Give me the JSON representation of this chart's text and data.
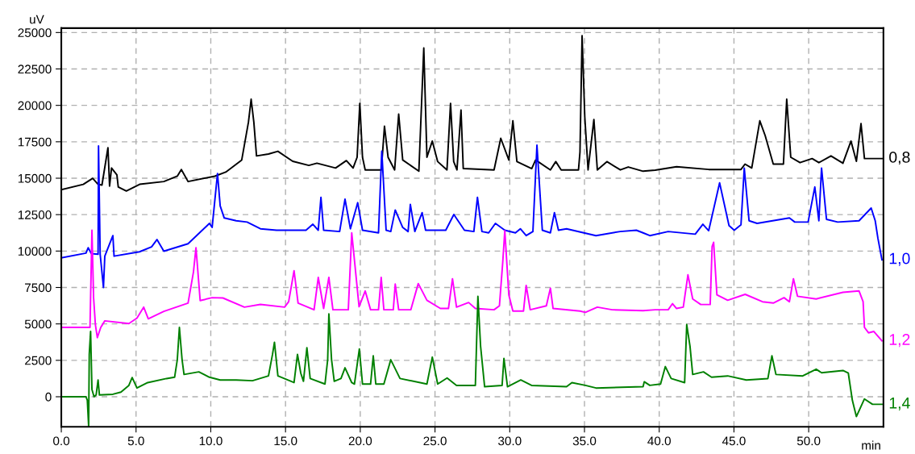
{
  "chart_data": {
    "type": "line",
    "xlabel": "min",
    "ylabel": "uV",
    "xlim": [
      0,
      55
    ],
    "ylim": [
      -2060,
      25300
    ],
    "xticks": [
      {
        "value": 0,
        "label": "0.0"
      },
      {
        "value": 5,
        "label": "5.0"
      },
      {
        "value": 10,
        "label": "10.0"
      },
      {
        "value": 15,
        "label": "15.0"
      },
      {
        "value": 20,
        "label": "20.0"
      },
      {
        "value": 25,
        "label": "25.0"
      },
      {
        "value": 30,
        "label": "30.0"
      },
      {
        "value": 35,
        "label": "35.0"
      },
      {
        "value": 40,
        "label": "40.0"
      },
      {
        "value": 45,
        "label": "45.0"
      },
      {
        "value": 50,
        "label": "50.0"
      }
    ],
    "yticks": [
      0,
      2500,
      5000,
      7500,
      10000,
      12500,
      15000,
      17500,
      20000,
      22500,
      25000
    ],
    "grid": true,
    "legend": false,
    "line_style": "solid",
    "marker": "none",
    "series": [
      {
        "name": "0,8",
        "color": "#000000",
        "x": [
          0,
          1.47,
          2.1,
          2.46,
          2.72,
          3.12,
          3.23,
          3.36,
          3.72,
          3.81,
          4.35,
          5.24,
          6.86,
          7.76,
          8.03,
          8.48,
          10.27,
          11.0,
          12.07,
          12.52,
          12.7,
          12.88,
          13.06,
          13.86,
          14.49,
          15.48,
          16.56,
          17.1,
          18.35,
          19.07,
          19.52,
          19.79,
          19.97,
          20.15,
          20.33,
          21.41,
          21.62,
          21.86,
          22.3,
          22.57,
          22.84,
          23.92,
          24.25,
          24.46,
          24.82,
          25.18,
          25.8,
          26.04,
          26.25,
          26.47,
          26.74,
          26.89,
          28.95,
          29.4,
          29.94,
          30.21,
          30.48,
          31.47,
          31.73,
          32.72,
          33.08,
          33.44,
          34.6,
          34.7,
          34.84,
          35.02,
          35.24,
          35.63,
          35.86,
          36.5,
          37.4,
          37.93,
          38.92,
          39.73,
          41.16,
          43.31,
          45.47,
          45.74,
          46.19,
          46.73,
          47.09,
          47.63,
          48.31,
          48.53,
          48.8,
          49.42,
          50.23,
          50.68,
          51.49,
          52.29,
          52.83,
          53.19,
          53.5,
          53.73,
          54.9
        ],
        "values": [
          14210,
          14580,
          14990,
          14580,
          14530,
          17090,
          14460,
          15700,
          15230,
          14400,
          14120,
          14580,
          14770,
          15140,
          15600,
          14770,
          15140,
          15420,
          16250,
          18850,
          20420,
          18850,
          16530,
          16660,
          16850,
          16160,
          15880,
          16030,
          15700,
          16210,
          15700,
          16440,
          20140,
          16440,
          15570,
          15570,
          18570,
          16440,
          15570,
          19400,
          16250,
          15480,
          23940,
          16440,
          17550,
          16140,
          15570,
          20140,
          16140,
          15570,
          19680,
          15660,
          15570,
          17740,
          16250,
          18940,
          16140,
          15660,
          16250,
          15570,
          16140,
          15570,
          15570,
          16810,
          24780,
          19220,
          15570,
          19030,
          15570,
          16140,
          15570,
          15770,
          15480,
          15550,
          15790,
          15600,
          15600,
          15970,
          15700,
          18940,
          17920,
          15970,
          15970,
          20420,
          16440,
          16070,
          16350,
          16070,
          16530,
          16030,
          17550,
          16160,
          18750,
          16350,
          16350
        ]
      },
      {
        "name": "1,0",
        "color": "#0000ff",
        "x": [
          0,
          1.65,
          1.8,
          2.01,
          2.46,
          2.49,
          2.6,
          2.82,
          2.91,
          3.45,
          3.53,
          5.23,
          6.04,
          6.4,
          6.86,
          8.48,
          9.91,
          10.09,
          10.45,
          10.63,
          10.9,
          11.7,
          12.43,
          13.32,
          14.4,
          15.3,
          16.37,
          16.83,
          17.19,
          17.37,
          17.55,
          18.62,
          18.98,
          19.34,
          19.83,
          20.15,
          21.22,
          21.44,
          21.73,
          22.04,
          22.34,
          22.84,
          23.2,
          23.35,
          23.65,
          24.14,
          24.37,
          25.72,
          26.26,
          26.97,
          27.6,
          27.84,
          28.14,
          28.59,
          29.04,
          29.67,
          30.38,
          30.71,
          31.1,
          31.55,
          31.82,
          32.18,
          32.72,
          32.99,
          33.26,
          33.8,
          35.77,
          37.39,
          38.47,
          38.92,
          39.37,
          40.6,
          42.41,
          42.92,
          43.31,
          44.04,
          44.67,
          45.02,
          45.47,
          45.69,
          46.01,
          46.55,
          48.71,
          49.07,
          49.96,
          50.41,
          50.68,
          50.86,
          51.19,
          51.94,
          53.37,
          54.18,
          54.45,
          54.63,
          54.9
        ],
        "values": [
          9540,
          9860,
          10230,
          9820,
          9780,
          17210,
          9780,
          7500,
          9650,
          11060,
          9650,
          9950,
          10290,
          10790,
          9990,
          10500,
          11900,
          11620,
          15320,
          13100,
          12270,
          12080,
          11990,
          11530,
          11430,
          11430,
          11430,
          11840,
          11430,
          13690,
          11430,
          11340,
          13560,
          11530,
          13320,
          11430,
          11250,
          16850,
          11430,
          11340,
          12820,
          11620,
          11340,
          13200,
          11340,
          12640,
          11430,
          11430,
          12510,
          11430,
          11340,
          13690,
          11340,
          11250,
          11900,
          11430,
          11250,
          11530,
          11060,
          11340,
          17270,
          11430,
          11250,
          12640,
          11430,
          11530,
          11060,
          11340,
          11430,
          11250,
          11060,
          11340,
          11160,
          11840,
          11400,
          14680,
          11750,
          11430,
          11800,
          15700,
          12080,
          11900,
          12270,
          11990,
          11990,
          14400,
          12080,
          15700,
          12180,
          11990,
          12080,
          12950,
          12080,
          10880,
          9400
        ]
      },
      {
        "name": "1,2",
        "color": "#ff00ff",
        "x": [
          0,
          1.92,
          2.05,
          2.16,
          2.28,
          2.41,
          2.64,
          2.91,
          4.52,
          5.06,
          5.51,
          5.82,
          6.86,
          8.48,
          8.84,
          9.01,
          9.29,
          10.09,
          10.81,
          12.25,
          13.32,
          14.94,
          15.21,
          15.57,
          15.84,
          16.91,
          17.19,
          17.55,
          17.9,
          18.17,
          19.2,
          19.43,
          19.92,
          20.33,
          20.69,
          21.22,
          21.4,
          21.58,
          22.21,
          22.34,
          22.57,
          23.38,
          23.88,
          24.46,
          25.36,
          25.9,
          26.17,
          26.44,
          27.25,
          27.7,
          28.95,
          29.31,
          29.53,
          29.67,
          29.94,
          30.21,
          30.92,
          31.1,
          31.37,
          32.45,
          32.72,
          32.9,
          34.7,
          35.06,
          35.86,
          36.85,
          38.92,
          39.73,
          40.6,
          40.89,
          41.16,
          41.61,
          41.92,
          42.24,
          42.78,
          43.41,
          43.54,
          43.64,
          43.86,
          44.58,
          45.75,
          46.91,
          47.63,
          48.35,
          48.71,
          48.98,
          49.25,
          50.5,
          52.29,
          53.37,
          53.64,
          53.73,
          54.0,
          54.36,
          54.9
        ],
        "values": [
          4760,
          4760,
          11430,
          6800,
          4950,
          4060,
          4760,
          5210,
          5020,
          5400,
          6150,
          5350,
          5860,
          6430,
          8560,
          10230,
          6600,
          6800,
          6780,
          6150,
          6340,
          6150,
          6520,
          8650,
          6430,
          5970,
          8190,
          6060,
          8190,
          5970,
          5970,
          11250,
          6180,
          7260,
          5970,
          5970,
          8190,
          5970,
          5970,
          7730,
          5970,
          5970,
          7770,
          6620,
          6060,
          6060,
          8100,
          6150,
          6470,
          6060,
          5970,
          6240,
          9210,
          11400,
          6990,
          5880,
          5880,
          7640,
          5970,
          6240,
          7450,
          6060,
          5880,
          5790,
          6150,
          5970,
          5910,
          5970,
          5970,
          6390,
          6060,
          6150,
          8370,
          6710,
          6330,
          6330,
          10320,
          10600,
          6990,
          6620,
          7030,
          6520,
          6430,
          6800,
          6520,
          8100,
          6900,
          6710,
          7170,
          7260,
          6520,
          4760,
          4390,
          4480,
          3840
        ]
      },
      {
        "name": "1,4",
        "color": "#008000",
        "x": [
          0,
          1.65,
          1.74,
          1.83,
          1.87,
          1.96,
          2.05,
          2.19,
          2.33,
          2.46,
          2.55,
          3.45,
          3.99,
          4.52,
          4.74,
          5.06,
          5.78,
          7.04,
          7.58,
          7.76,
          7.9,
          8.08,
          8.21,
          9.2,
          9.91,
          10.63,
          11.7,
          12.79,
          13.86,
          14.13,
          14.26,
          14.49,
          15.57,
          15.8,
          16.02,
          16.2,
          16.43,
          16.65,
          17.64,
          17.82,
          17.9,
          18.08,
          18.26,
          18.71,
          18.98,
          19.43,
          19.61,
          19.94,
          20.15,
          20.69,
          20.87,
          21.04,
          21.58,
          22.04,
          22.66,
          24.46,
          24.82,
          25.18,
          25.81,
          26.44,
          27.7,
          27.87,
          28.05,
          28.32,
          29.49,
          29.61,
          29.85,
          30.74,
          31.46,
          33.8,
          34.16,
          35.06,
          35.77,
          38.92,
          39.0,
          39.37,
          40.09,
          40.41,
          40.8,
          41.7,
          41.84,
          42.06,
          42.24,
          42.96,
          43.5,
          44.58,
          45.83,
          47.27,
          47.54,
          47.81,
          49.6,
          50.5,
          50.86,
          52.29,
          52.65,
          52.92,
          53.19,
          53.73,
          54.27,
          54.9
        ],
        "values": [
          0,
          0,
          -240,
          -2050,
          2910,
          4480,
          500,
          0,
          120,
          1150,
          120,
          170,
          320,
          780,
          1320,
          600,
          970,
          1250,
          1340,
          2540,
          4760,
          2540,
          1530,
          1710,
          1340,
          1150,
          1150,
          1100,
          1430,
          2910,
          3740,
          1430,
          970,
          2910,
          1620,
          1060,
          3370,
          1250,
          870,
          2540,
          5690,
          2540,
          1060,
          1250,
          1990,
          970,
          870,
          3280,
          870,
          870,
          2810,
          870,
          870,
          2540,
          1250,
          870,
          2720,
          870,
          1290,
          780,
          780,
          6890,
          3470,
          690,
          780,
          2630,
          690,
          1150,
          780,
          690,
          970,
          780,
          600,
          690,
          1030,
          780,
          870,
          2070,
          1250,
          970,
          4950,
          3470,
          1530,
          1710,
          1340,
          1430,
          1150,
          1250,
          2810,
          1530,
          1430,
          1890,
          1650,
          1800,
          1620,
          -240,
          -1360,
          -150,
          -520,
          -520
        ]
      }
    ]
  }
}
